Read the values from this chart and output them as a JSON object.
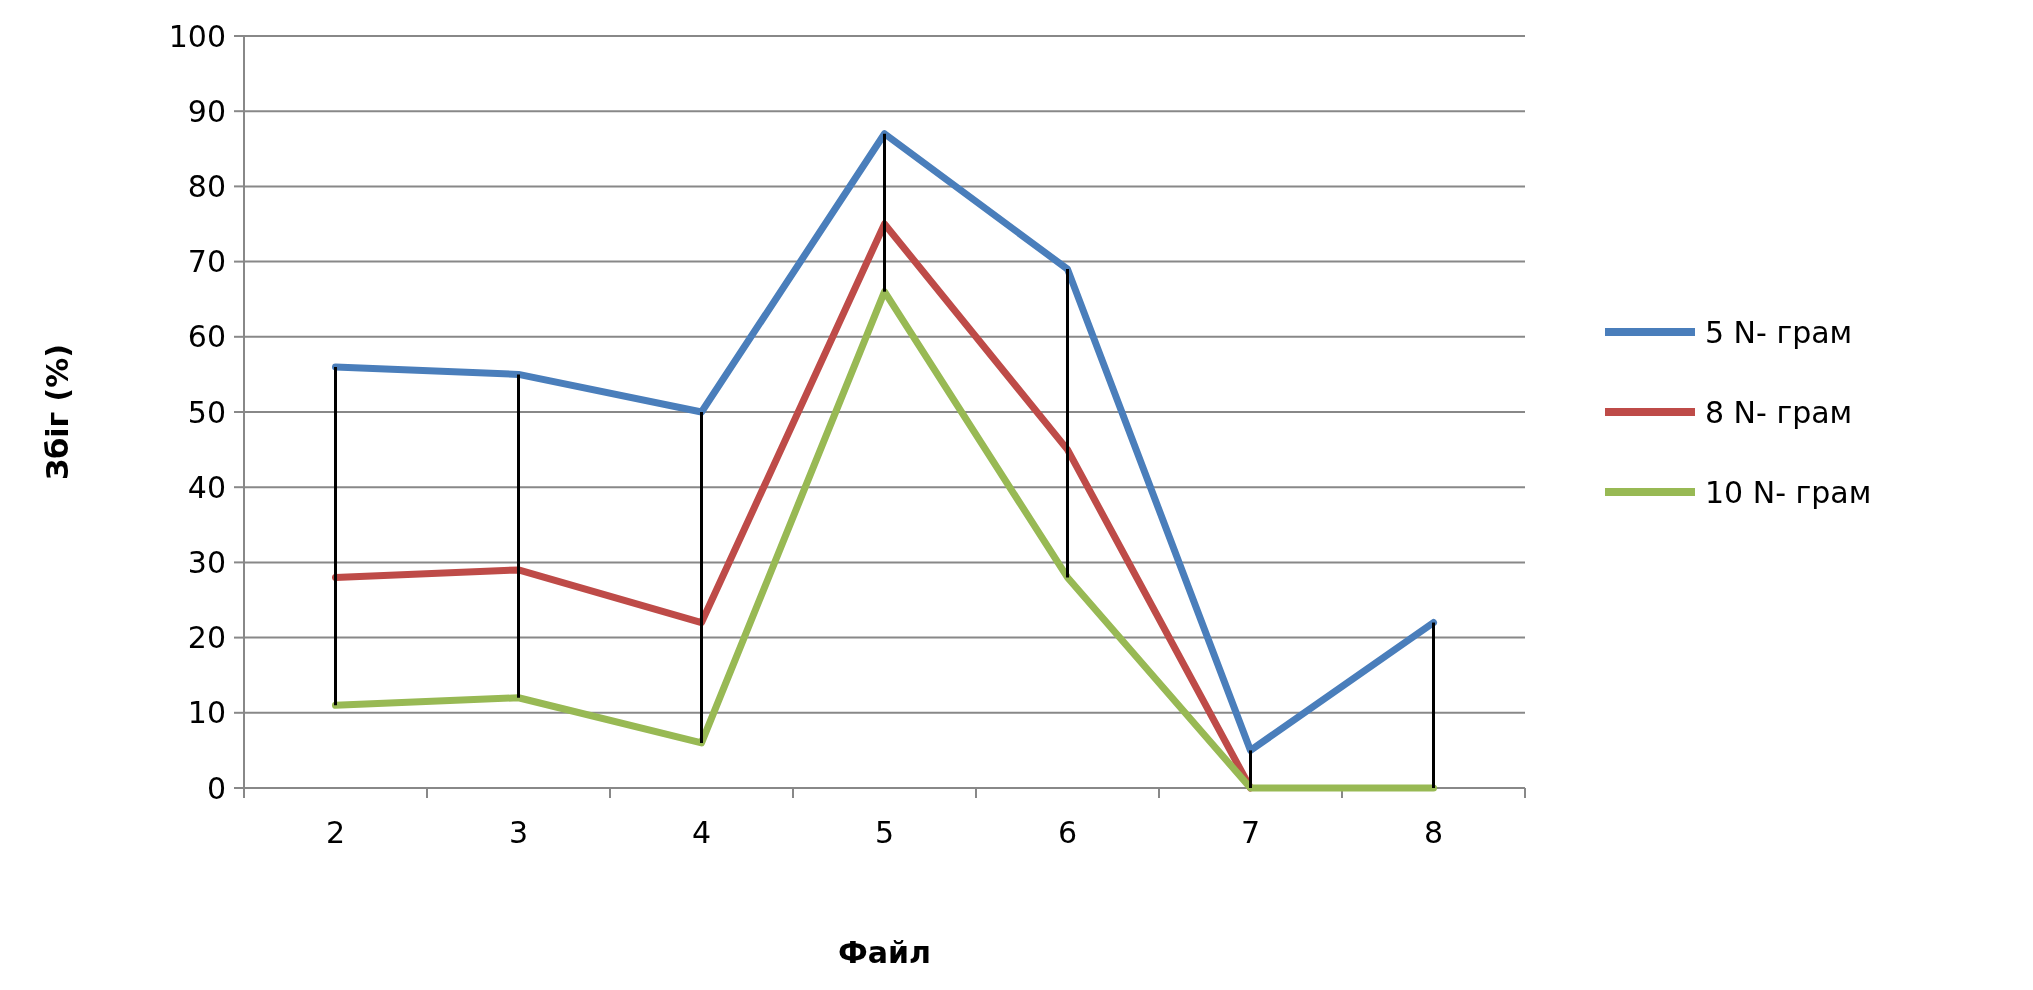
{
  "chart_data": {
    "type": "line",
    "xlabel": "Файл",
    "ylabel": "Збіг (%)",
    "categories": [
      "2",
      "3",
      "4",
      "5",
      "6",
      "7",
      "8"
    ],
    "series": [
      {
        "name": "5 N- грам",
        "color": "#4a7ebb",
        "values": [
          56,
          55,
          50,
          87,
          69,
          5,
          22
        ],
        "errors": [
          [
            11,
            56
          ],
          [
            12,
            55
          ],
          [
            6,
            50
          ],
          [
            66,
            87
          ],
          [
            28,
            69
          ],
          [
            0,
            5
          ],
          [
            0,
            22
          ]
        ]
      },
      {
        "name": "8 N- грам",
        "color": "#be4b48",
        "values": [
          28,
          29,
          22,
          75,
          45,
          0,
          null
        ]
      },
      {
        "name": "10 N- грам",
        "color": "#98b954",
        "values": [
          11,
          12,
          6,
          66,
          28,
          0,
          0
        ]
      }
    ],
    "ylim": [
      0,
      100
    ],
    "yticks": [
      0,
      10,
      20,
      30,
      40,
      50,
      60,
      70,
      80,
      90,
      100
    ],
    "grid": "y",
    "legend": "right",
    "marker": "none",
    "line_style": "solid"
  }
}
